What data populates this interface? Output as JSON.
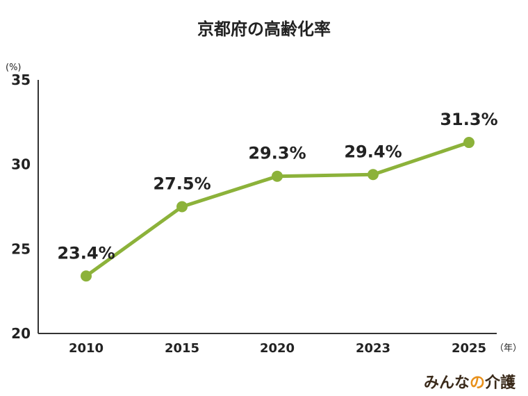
{
  "chart_data": {
    "type": "line",
    "title": "京都府の高齢化率",
    "x": [
      "2010",
      "2015",
      "2020",
      "2023",
      "2025"
    ],
    "series": [
      {
        "values": [
          23.4,
          27.5,
          29.3,
          29.4,
          31.3
        ]
      }
    ],
    "data_labels": [
      "23.4%",
      "27.5%",
      "29.3%",
      "29.4%",
      "31.3%"
    ],
    "y_ticks": [
      "20",
      "25",
      "30",
      "35"
    ],
    "ylim": [
      20,
      35
    ],
    "y_unit": "(%)",
    "x_unit": "（年）",
    "grid": false,
    "line_color": "#8cb23a",
    "marker_color": "#8cb23a"
  },
  "brand": {
    "logo_main": "みんな",
    "logo_accent": "の",
    "logo_tail": "介護",
    "accent_color": "#e8901a",
    "text_color": "#3a2a1a"
  }
}
